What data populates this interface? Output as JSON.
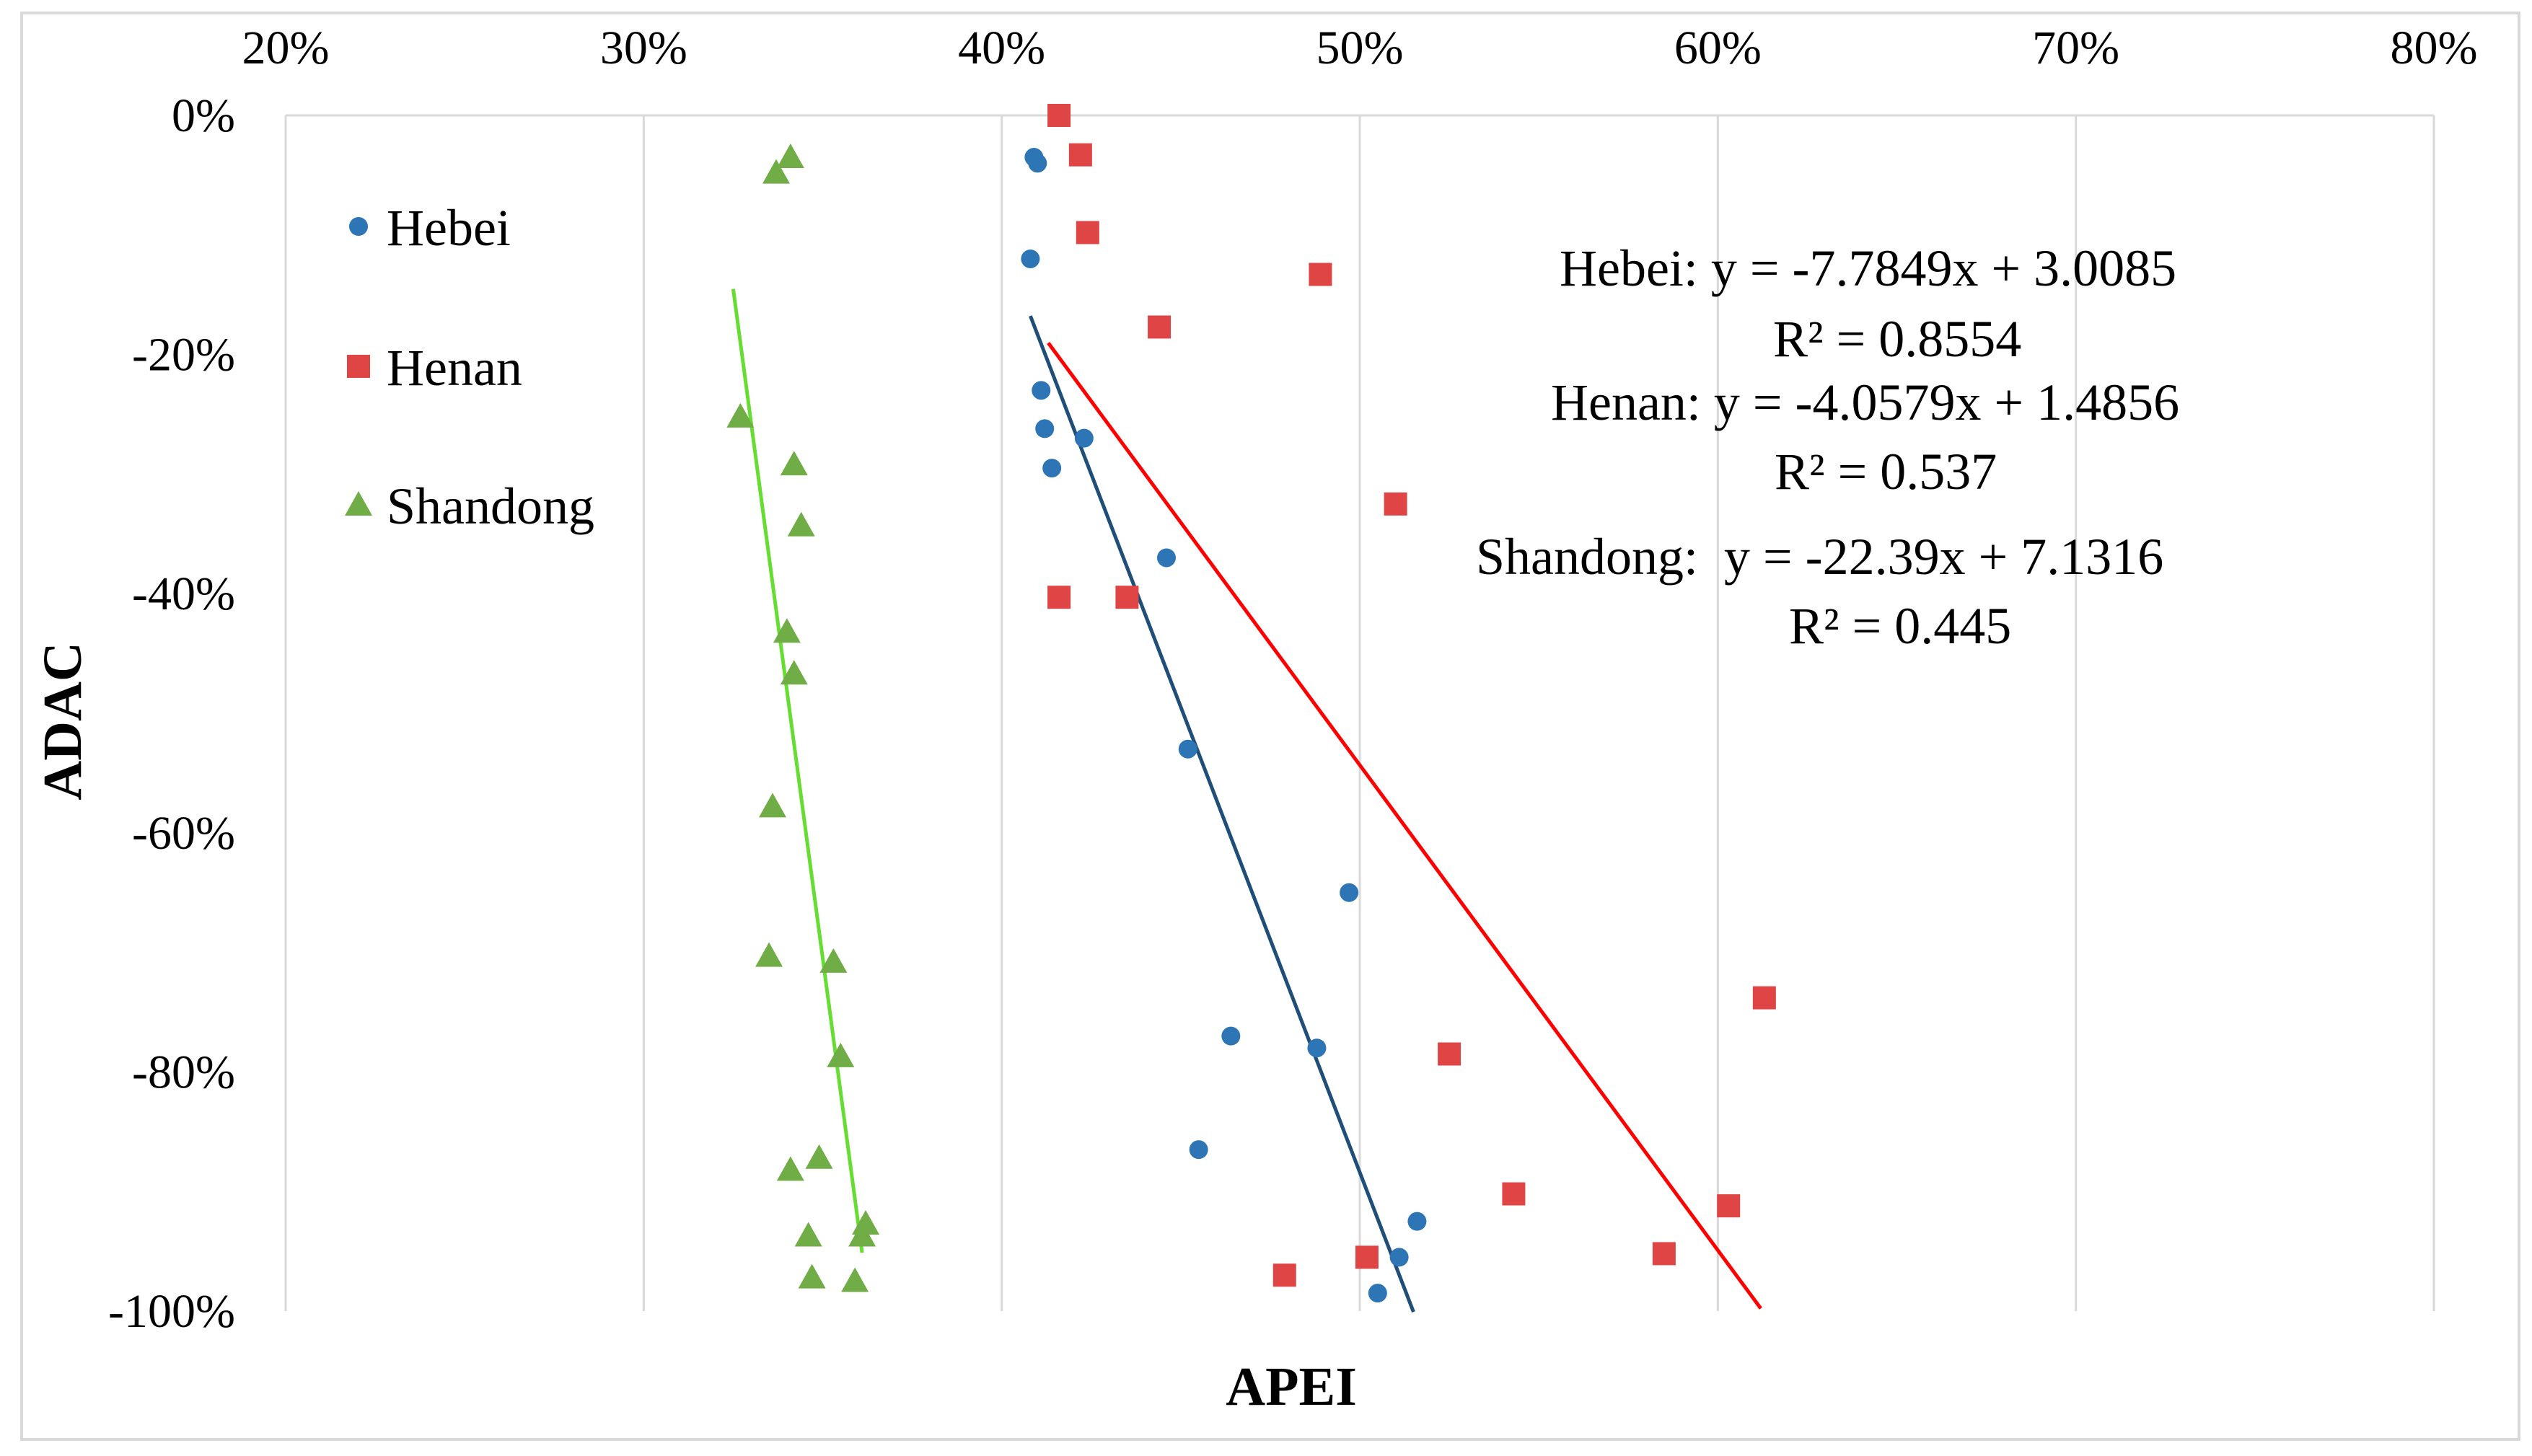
{
  "chart_data": {
    "type": "scatter",
    "title": "",
    "xlabel": "APEI",
    "ylabel": "ADAC",
    "xlim": [
      0.2,
      0.8
    ],
    "ylim": [
      -1.0,
      0.0
    ],
    "x_axis_position": "top",
    "grid": {
      "vertical": true,
      "horizontal": false
    },
    "x_ticks": [
      0.2,
      0.3,
      0.4,
      0.5,
      0.6,
      0.7,
      0.8
    ],
    "x_tick_labels": [
      "20%",
      "30%",
      "40%",
      "50%",
      "60%",
      "70%",
      "80%"
    ],
    "y_ticks": [
      0.0,
      -0.2,
      -0.4,
      -0.6,
      -0.8,
      -1.0
    ],
    "y_tick_labels": [
      "0%",
      "-20%",
      "-40%",
      "-60%",
      "-80%",
      "-100%"
    ],
    "legend_position": "top-left",
    "series": [
      {
        "name": "Hebei",
        "marker": "circle",
        "color": "#2e75b6",
        "points": [
          [
            0.409,
            -0.035
          ],
          [
            0.41,
            -0.04
          ],
          [
            0.408,
            -0.12
          ],
          [
            0.411,
            -0.23
          ],
          [
            0.412,
            -0.262
          ],
          [
            0.414,
            -0.295
          ],
          [
            0.423,
            -0.27
          ],
          [
            0.446,
            -0.37
          ],
          [
            0.452,
            -0.53
          ],
          [
            0.497,
            -0.65
          ],
          [
            0.464,
            -0.77
          ],
          [
            0.488,
            -0.78
          ],
          [
            0.455,
            -0.865
          ],
          [
            0.516,
            -0.925
          ],
          [
            0.511,
            -0.955
          ],
          [
            0.505,
            -0.985
          ]
        ],
        "trendline": {
          "x_range": [
            0.408,
            0.515
          ],
          "equation": "Hebei: y = -7.7849x + 3.0085",
          "r2": "R² = 0.8554",
          "color": "#1f4e79"
        }
      },
      {
        "name": "Henan",
        "marker": "square",
        "color": "#e04545",
        "points": [
          [
            0.416,
            0.0
          ],
          [
            0.422,
            -0.033
          ],
          [
            0.424,
            -0.098
          ],
          [
            0.489,
            -0.133
          ],
          [
            0.444,
            -0.177
          ],
          [
            0.51,
            -0.325
          ],
          [
            0.416,
            -0.403
          ],
          [
            0.435,
            -0.403
          ],
          [
            0.613,
            -0.738
          ],
          [
            0.525,
            -0.785
          ],
          [
            0.543,
            -0.902
          ],
          [
            0.603,
            -0.912
          ],
          [
            0.585,
            -0.952
          ],
          [
            0.502,
            -0.955
          ],
          [
            0.479,
            -0.97
          ]
        ],
        "trendline": {
          "x_range": [
            0.413,
            0.612
          ],
          "equation": "Henan: y = -4.0579x + 1.4856",
          "r2": "R² = 0.537",
          "color": "#ff0000"
        }
      },
      {
        "name": "Shandong",
        "marker": "triangle",
        "color": "#70ad47",
        "points": [
          [
            0.341,
            -0.035
          ],
          [
            0.337,
            -0.048
          ],
          [
            0.327,
            -0.252
          ],
          [
            0.342,
            -0.292
          ],
          [
            0.344,
            -0.343
          ],
          [
            0.34,
            -0.432
          ],
          [
            0.342,
            -0.467
          ],
          [
            0.336,
            -0.578
          ],
          [
            0.335,
            -0.703
          ],
          [
            0.353,
            -0.708
          ],
          [
            0.355,
            -0.787
          ],
          [
            0.349,
            -0.872
          ],
          [
            0.341,
            -0.882
          ],
          [
            0.362,
            -0.927
          ],
          [
            0.361,
            -0.937
          ],
          [
            0.346,
            -0.937
          ],
          [
            0.347,
            -0.972
          ],
          [
            0.359,
            -0.975
          ]
        ],
        "trendline": {
          "x_range": [
            0.325,
            0.361
          ],
          "equation": "Shandong:  y = -22.39x + 7.1316",
          "r2": "R² = 0.445",
          "color": "#66dd33"
        }
      }
    ]
  }
}
